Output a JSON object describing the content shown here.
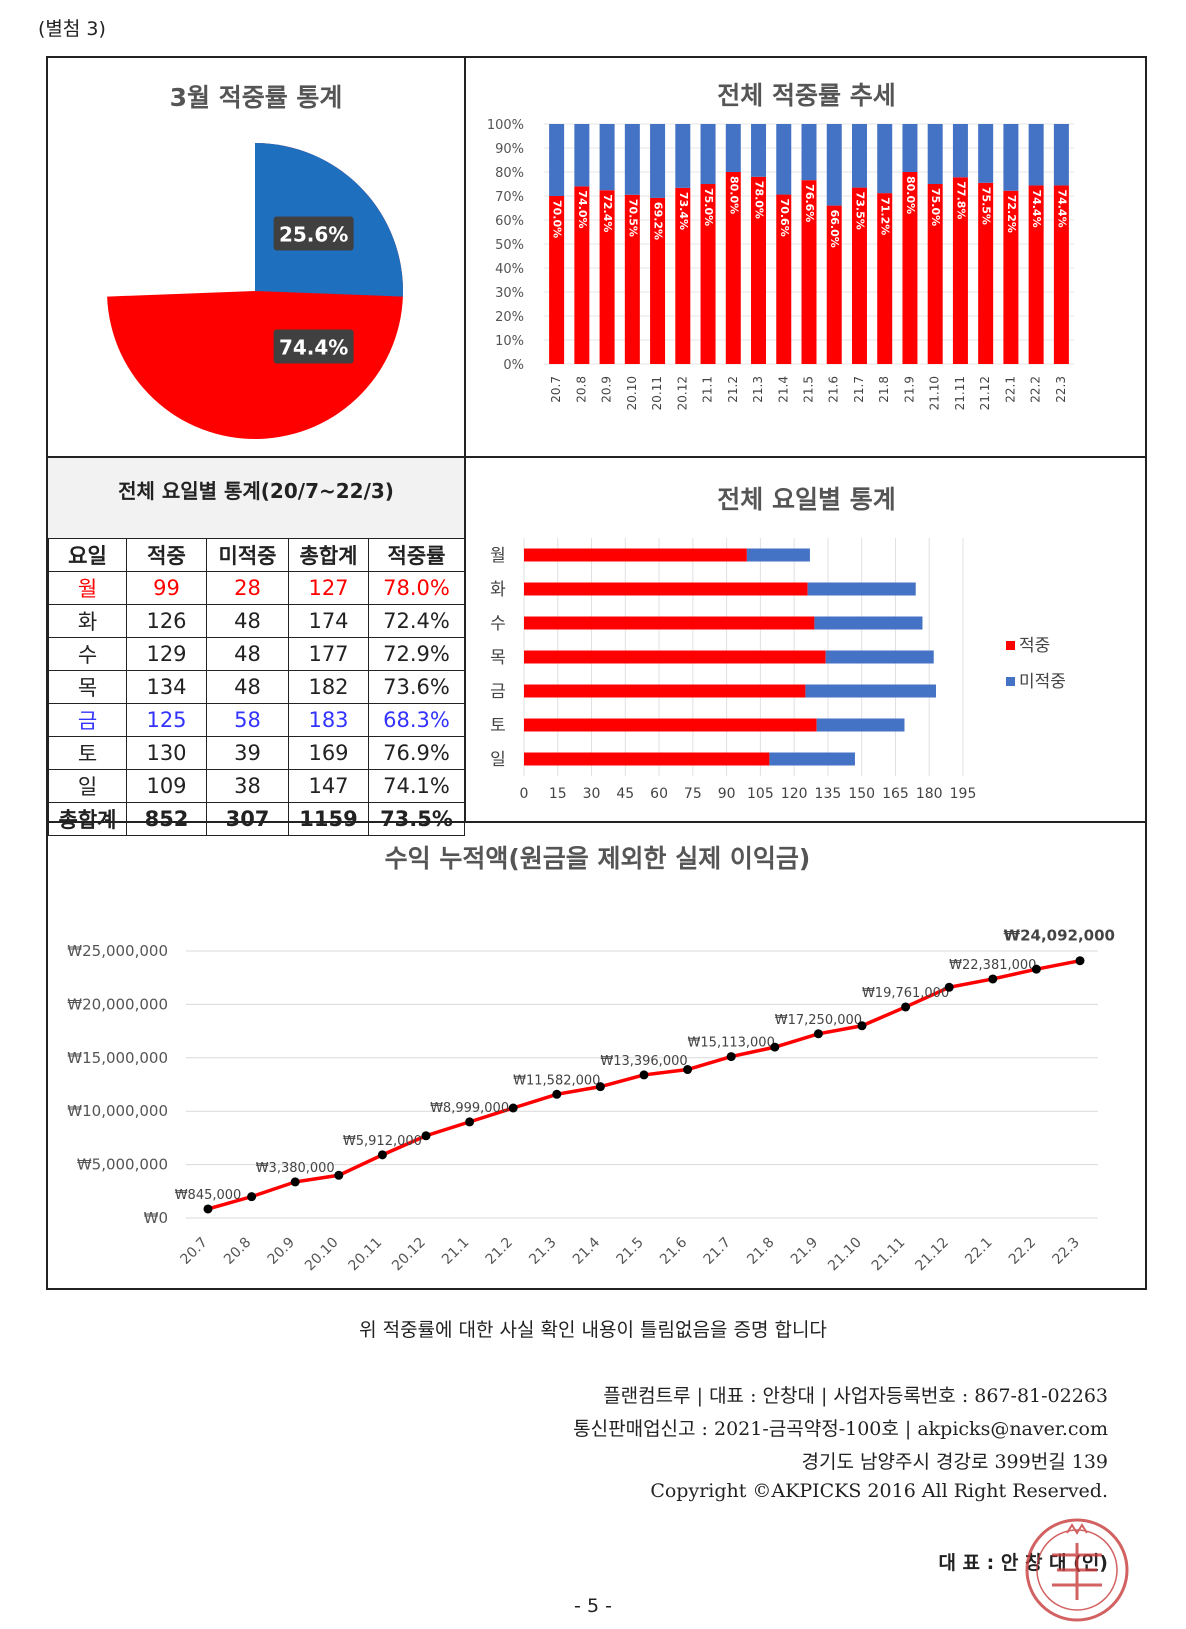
{
  "attachment_label": "(별첨 3)",
  "confirm_text": "위 적중률에 대한 사실 확인 내용이 틀림없음을 증명 합니다",
  "footer_lines": [
    "플랜컴트루 | 대표 : 안창대 | 사업자등록번호 : 867-81-02263",
    "통신판매업신고 : 2021-금곡약정-100호 | akpicks@naver.com",
    "경기도 남양주시 경강로 399번길 139",
    "Copyright ©AKPICKS 2016 All Right Reserved."
  ],
  "signature_text": "대 표 : 안 창 대 (인)",
  "page_number": "- 5 -",
  "colors": {
    "hit": "#ff0000",
    "miss": "#4472c4",
    "blue_row_text": "#3333ff"
  },
  "weekday_table": {
    "title": "전체 요일별 통계(20/7~22/3)",
    "headers": [
      "요일",
      "적중",
      "미적중",
      "총합계",
      "적중률"
    ],
    "rows": [
      [
        "월",
        "99",
        "28",
        "127",
        "78.0%"
      ],
      [
        "화",
        "126",
        "48",
        "174",
        "72.4%"
      ],
      [
        "수",
        "129",
        "48",
        "177",
        "72.9%"
      ],
      [
        "목",
        "134",
        "48",
        "182",
        "73.6%"
      ],
      [
        "금",
        "125",
        "58",
        "183",
        "68.3%"
      ],
      [
        "토",
        "130",
        "39",
        "169",
        "76.9%"
      ],
      [
        "일",
        "109",
        "38",
        "147",
        "74.1%"
      ],
      [
        "총합계",
        "852",
        "307",
        "1159",
        "73.5%"
      ]
    ]
  },
  "chart_data": [
    {
      "type": "pie",
      "title": "3월 적중률 통계",
      "slices": [
        {
          "label": "74.4%",
          "value": 74.4,
          "color": "#ff0000"
        },
        {
          "label": "25.6%",
          "value": 25.6,
          "color": "#1f6fbf"
        }
      ]
    },
    {
      "type": "bar",
      "stacked": true,
      "title": "전체 적중률 추세",
      "categories": [
        "20.7",
        "20.8",
        "20.9",
        "20.10",
        "20.11",
        "20.12",
        "21.1",
        "21.2",
        "21.3",
        "21.4",
        "21.5",
        "21.6",
        "21.7",
        "21.8",
        "21.9",
        "21.10",
        "21.11",
        "21.12",
        "22.1",
        "22.2",
        "22.3"
      ],
      "series": [
        {
          "values": [
            70.0,
            74.0,
            72.4,
            70.5,
            69.2,
            73.4,
            75.0,
            80.0,
            78.0,
            70.6,
            76.6,
            66.0,
            73.5,
            71.2,
            80.0,
            75.0,
            77.8,
            75.5,
            72.2,
            74.4,
            74.4
          ],
          "labels": [
            "70.0%",
            "74.0%",
            "72.4%",
            "70.5%",
            "69.2%",
            "73.4%",
            "75.0%",
            "80.0%",
            "78.0%",
            "70.6%",
            "76.6%",
            "66.0%",
            "73.5%",
            "71.2%",
            "80.0%",
            "75.0%",
            "77.8%",
            "75.5%",
            "72.2%",
            "74.4%",
            "74.4%"
          ],
          "color": "#ff0000"
        },
        {
          "values": [
            30.0,
            26.0,
            27.6,
            29.5,
            30.8,
            26.6,
            25.0,
            20.0,
            22.0,
            29.4,
            23.4,
            34.0,
            26.5,
            28.8,
            20.0,
            25.0,
            22.2,
            24.5,
            27.8,
            25.6,
            25.6
          ],
          "color": "#4472c4"
        }
      ],
      "yticks": [
        "0%",
        "10%",
        "20%",
        "30%",
        "40%",
        "50%",
        "60%",
        "70%",
        "80%",
        "90%",
        "100%"
      ],
      "ylim": [
        0,
        100
      ]
    },
    {
      "type": "bar",
      "orientation": "horizontal",
      "stacked": true,
      "title": "전체 요일별 통계",
      "categories": [
        "월",
        "화",
        "수",
        "목",
        "금",
        "토",
        "일"
      ],
      "series": [
        {
          "name": "적중",
          "values": [
            99,
            126,
            129,
            134,
            125,
            130,
            109
          ],
          "color": "#ff0000"
        },
        {
          "name": "미적중",
          "values": [
            28,
            48,
            48,
            48,
            58,
            39,
            38
          ],
          "color": "#4472c4"
        }
      ],
      "xticks": [
        "0",
        "15",
        "30",
        "45",
        "60",
        "75",
        "90",
        "105",
        "120",
        "135",
        "150",
        "165",
        "180",
        "195"
      ],
      "xlim": [
        0,
        195
      ],
      "legend": "right"
    },
    {
      "type": "line",
      "title": "수익 누적액(원금을 제외한 실제 이익금)",
      "categories": [
        "20.7",
        "20.8",
        "20.9",
        "20.10",
        "20.11",
        "20.12",
        "21.1",
        "21.2",
        "21.3",
        "21.4",
        "21.5",
        "21.6",
        "21.7",
        "21.8",
        "21.9",
        "21.10",
        "21.11",
        "21.12",
        "22.1",
        "22.2",
        "22.3"
      ],
      "values": [
        845000,
        2000000,
        3380000,
        4000000,
        5912000,
        7700000,
        8999000,
        10300000,
        11582000,
        12300000,
        13396000,
        13900000,
        15113000,
        16000000,
        17250000,
        18000000,
        19761000,
        21600000,
        22381000,
        23300000,
        24092000
      ],
      "point_labels": [
        "₩845,000",
        "",
        "₩3,380,000",
        "",
        "₩5,912,000",
        "",
        "₩8,999,000",
        "",
        "₩11,582,000",
        "",
        "₩13,396,000",
        "",
        "₩15,113,000",
        "",
        "₩17,250,000",
        "",
        "₩19,761,000",
        "",
        "₩22,381,000",
        "",
        "₩24,092,000"
      ],
      "yticks": [
        "₩0",
        "₩5,000,000",
        "₩10,000,000",
        "₩15,000,000",
        "₩20,000,000",
        "₩25,000,000"
      ],
      "ylim": [
        0,
        25000000
      ],
      "line_color": "#ff0000",
      "marker_color": "#000000"
    }
  ]
}
